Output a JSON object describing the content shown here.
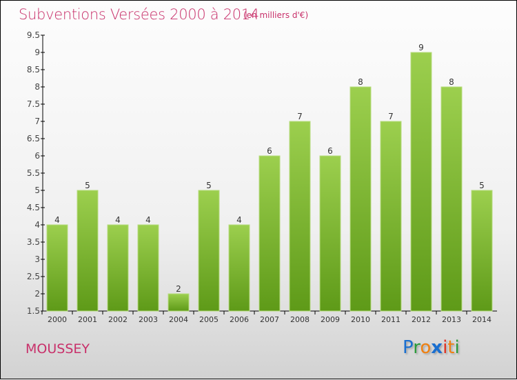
{
  "title": "Subventions Versées 2000 à 2014",
  "unit": "(en milliers d'€)",
  "commune": "MOUSSEY",
  "logo": "Proxiti",
  "colors": {
    "bar_top": "#9ccf4e",
    "bar_bottom": "#5e9a18",
    "title": "#c8306a"
  },
  "chart_data": {
    "type": "bar",
    "title": "Subventions Versées 2000 à 2014",
    "xlabel": "",
    "ylabel": "(en milliers d'€)",
    "categories": [
      "2000",
      "2001",
      "2002",
      "2003",
      "2004",
      "2005",
      "2006",
      "2007",
      "2008",
      "2009",
      "2010",
      "2011",
      "2012",
      "2013",
      "2014"
    ],
    "values": [
      4,
      5,
      4,
      4,
      2,
      5,
      4,
      6,
      7,
      6,
      8,
      7,
      9,
      8,
      5
    ],
    "ylim": [
      1.5,
      9.5
    ],
    "yticks": [
      "1.5",
      "2",
      "2.5",
      "3",
      "3.5",
      "4",
      "4.5",
      "5",
      "5.5",
      "6",
      "6.5",
      "7",
      "7.5",
      "8",
      "8.5",
      "9",
      "9.5"
    ],
    "grid": false
  }
}
